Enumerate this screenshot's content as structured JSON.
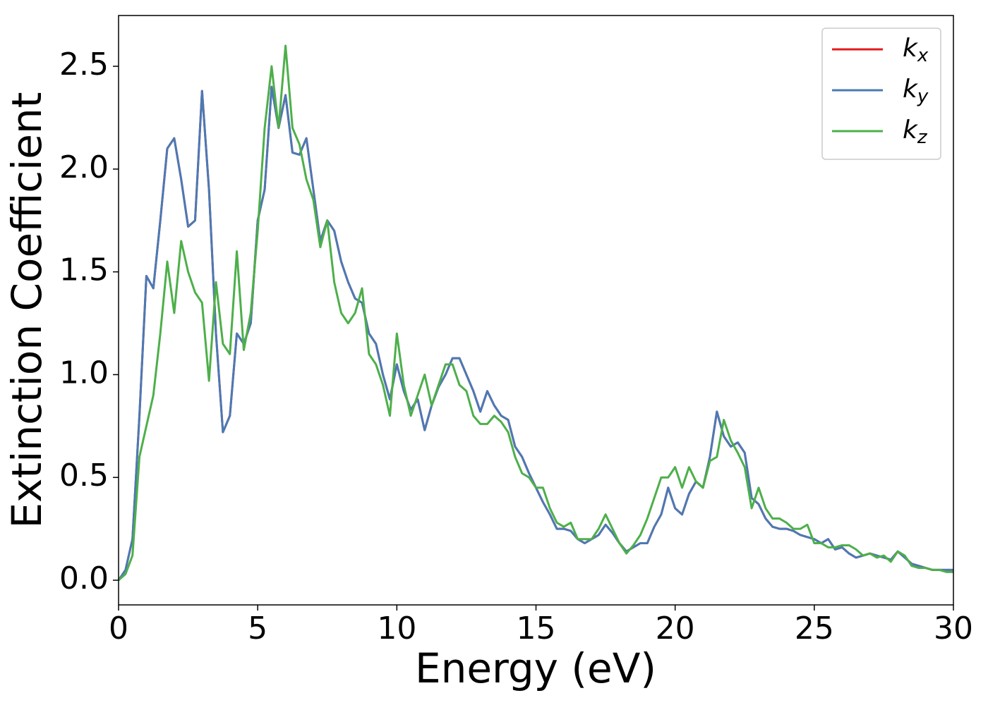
{
  "chart_data": {
    "type": "line",
    "xlabel": "Energy (eV)",
    "ylabel": "Extinction Coefficient",
    "xlim": [
      0,
      30
    ],
    "ylim": [
      -0.12,
      2.747
    ],
    "xticks": [
      0,
      5,
      10,
      15,
      20,
      25,
      30
    ],
    "yticks": [
      {
        "value": 0,
        "label": "0.0"
      },
      0.5,
      {
        "value": 1,
        "label": "1.0"
      },
      1.5,
      {
        "value": 2,
        "label": "2.0"
      },
      2.5
    ],
    "grid": false,
    "legend": "upper right",
    "x": [
      0,
      0.25,
      0.5,
      0.75,
      1,
      1.25,
      1.5,
      1.75,
      2,
      2.25,
      2.5,
      2.75,
      3,
      3.25,
      3.5,
      3.75,
      4,
      4.25,
      4.5,
      4.75,
      5,
      5.25,
      5.5,
      5.75,
      6,
      6.25,
      6.5,
      6.75,
      7,
      7.25,
      7.5,
      7.75,
      8,
      8.25,
      8.5,
      8.75,
      9,
      9.25,
      9.5,
      9.75,
      10,
      10.25,
      10.5,
      10.75,
      11,
      11.25,
      11.5,
      11.75,
      12,
      12.25,
      12.5,
      12.75,
      13,
      13.25,
      13.5,
      13.75,
      14,
      14.25,
      14.5,
      14.75,
      15,
      15.25,
      15.5,
      15.75,
      16,
      16.25,
      16.5,
      16.75,
      17,
      17.25,
      17.5,
      17.75,
      18,
      18.25,
      18.5,
      18.75,
      19,
      19.25,
      19.5,
      19.75,
      20,
      20.25,
      20.5,
      20.75,
      21,
      21.25,
      21.5,
      21.75,
      22,
      22.25,
      22.5,
      22.75,
      23,
      23.25,
      23.5,
      23.75,
      24,
      24.25,
      24.5,
      24.75,
      25,
      25.25,
      25.5,
      25.75,
      26,
      26.25,
      26.5,
      26.75,
      27,
      27.25,
      27.5,
      27.75,
      28,
      28.25,
      28.5,
      28.75,
      29,
      29.25,
      29.5,
      29.75,
      30
    ],
    "series": [
      {
        "name": "kx",
        "color": "#e41a1c",
        "values": [
          0,
          0.05,
          0.2,
          0.8,
          1.48,
          1.42,
          1.75,
          2.1,
          2.15,
          1.95,
          1.72,
          1.75,
          2.38,
          1.9,
          1.2,
          0.72,
          0.8,
          1.2,
          1.15,
          1.25,
          1.75,
          1.9,
          2.4,
          2.2,
          2.36,
          2.08,
          2.07,
          2.15,
          1.9,
          1.65,
          1.75,
          1.7,
          1.55,
          1.45,
          1.37,
          1.35,
          1.2,
          1.15,
          1,
          0.88,
          1.05,
          0.92,
          0.83,
          0.88,
          0.73,
          0.85,
          0.94,
          1,
          1.08,
          1.08,
          1,
          0.92,
          0.82,
          0.92,
          0.85,
          0.8,
          0.78,
          0.65,
          0.6,
          0.52,
          0.45,
          0.38,
          0.32,
          0.25,
          0.25,
          0.24,
          0.2,
          0.18,
          0.2,
          0.22,
          0.27,
          0.23,
          0.18,
          0.14,
          0.16,
          0.18,
          0.18,
          0.26,
          0.32,
          0.45,
          0.35,
          0.32,
          0.42,
          0.48,
          0.45,
          0.6,
          0.82,
          0.7,
          0.65,
          0.67,
          0.62,
          0.4,
          0.37,
          0.3,
          0.26,
          0.25,
          0.25,
          0.24,
          0.22,
          0.21,
          0.2,
          0.18,
          0.2,
          0.15,
          0.16,
          0.13,
          0.11,
          0.12,
          0.13,
          0.12,
          0.11,
          0.1,
          0.14,
          0.11,
          0.08,
          0.07,
          0.06,
          0.05,
          0.05,
          0.05,
          0.05
        ]
      },
      {
        "name": "ky",
        "color": "#4a7ab5",
        "values": [
          0,
          0.05,
          0.2,
          0.8,
          1.48,
          1.42,
          1.75,
          2.1,
          2.15,
          1.95,
          1.72,
          1.75,
          2.38,
          1.9,
          1.2,
          0.72,
          0.8,
          1.2,
          1.15,
          1.25,
          1.75,
          1.9,
          2.4,
          2.2,
          2.36,
          2.08,
          2.07,
          2.15,
          1.9,
          1.65,
          1.75,
          1.7,
          1.55,
          1.45,
          1.37,
          1.35,
          1.2,
          1.15,
          1,
          0.88,
          1.05,
          0.92,
          0.83,
          0.88,
          0.73,
          0.85,
          0.94,
          1,
          1.08,
          1.08,
          1,
          0.92,
          0.82,
          0.92,
          0.85,
          0.8,
          0.78,
          0.65,
          0.6,
          0.52,
          0.45,
          0.38,
          0.32,
          0.25,
          0.25,
          0.24,
          0.2,
          0.18,
          0.2,
          0.22,
          0.27,
          0.23,
          0.18,
          0.14,
          0.16,
          0.18,
          0.18,
          0.26,
          0.32,
          0.45,
          0.35,
          0.32,
          0.42,
          0.48,
          0.45,
          0.6,
          0.82,
          0.7,
          0.65,
          0.67,
          0.62,
          0.4,
          0.37,
          0.3,
          0.26,
          0.25,
          0.25,
          0.24,
          0.22,
          0.21,
          0.2,
          0.18,
          0.2,
          0.15,
          0.16,
          0.13,
          0.11,
          0.12,
          0.13,
          0.12,
          0.11,
          0.1,
          0.14,
          0.11,
          0.08,
          0.07,
          0.06,
          0.05,
          0.05,
          0.05,
          0.05
        ]
      },
      {
        "name": "kz",
        "color": "#4daf4a",
        "values": [
          0,
          0.03,
          0.12,
          0.6,
          0.75,
          0.9,
          1.2,
          1.55,
          1.3,
          1.65,
          1.5,
          1.4,
          1.35,
          0.97,
          1.45,
          1.15,
          1.1,
          1.6,
          1.12,
          1.3,
          1.7,
          2.2,
          2.5,
          2.2,
          2.6,
          2.2,
          2.12,
          1.95,
          1.85,
          1.62,
          1.75,
          1.45,
          1.3,
          1.25,
          1.3,
          1.42,
          1.1,
          1.05,
          0.95,
          0.8,
          1.2,
          0.95,
          0.8,
          0.9,
          1,
          0.85,
          0.95,
          1.05,
          1.05,
          0.95,
          0.92,
          0.8,
          0.76,
          0.76,
          0.8,
          0.77,
          0.72,
          0.6,
          0.52,
          0.5,
          0.45,
          0.45,
          0.35,
          0.28,
          0.26,
          0.28,
          0.2,
          0.2,
          0.2,
          0.25,
          0.32,
          0.25,
          0.18,
          0.13,
          0.17,
          0.22,
          0.3,
          0.4,
          0.5,
          0.5,
          0.55,
          0.45,
          0.55,
          0.48,
          0.45,
          0.58,
          0.6,
          0.78,
          0.68,
          0.62,
          0.55,
          0.35,
          0.45,
          0.35,
          0.3,
          0.3,
          0.28,
          0.25,
          0.25,
          0.27,
          0.18,
          0.18,
          0.16,
          0.16,
          0.17,
          0.17,
          0.15,
          0.12,
          0.13,
          0.11,
          0.12,
          0.09,
          0.14,
          0.12,
          0.07,
          0.06,
          0.06,
          0.05,
          0.05,
          0.04,
          0.04
        ]
      }
    ]
  }
}
